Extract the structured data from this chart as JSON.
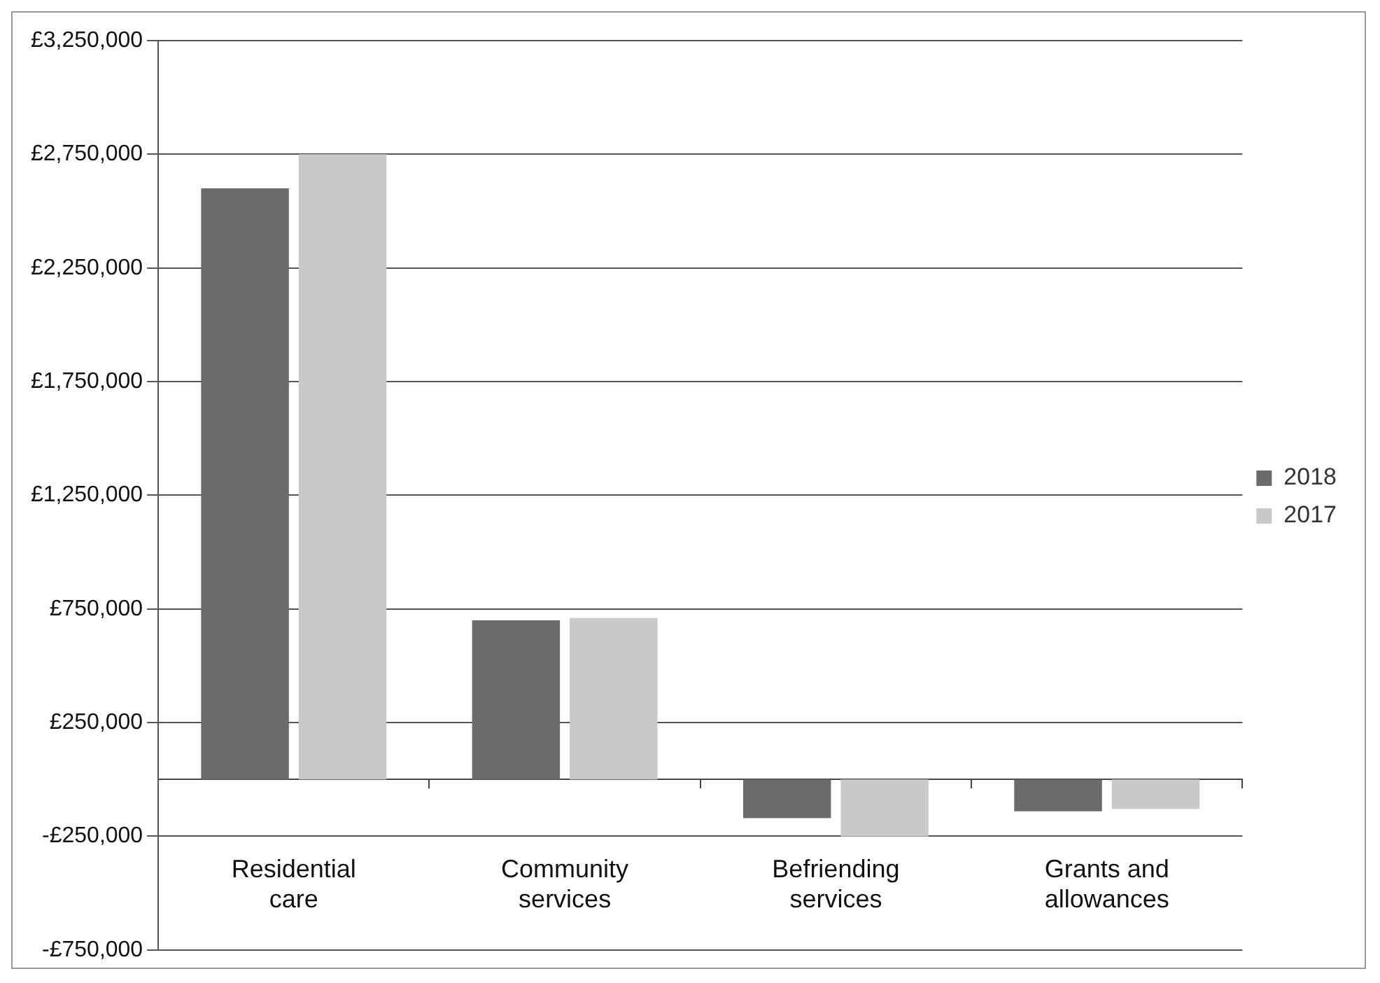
{
  "chart_data": {
    "type": "bar",
    "categories": [
      "Residential care",
      "Community services",
      "Befriending services",
      "Grants and allowances"
    ],
    "series": [
      {
        "name": "2018",
        "color": "#6b6b6b",
        "values": [
          2600000,
          700000,
          -170000,
          -140000
        ]
      },
      {
        "name": "2017",
        "color": "#c9c9c9",
        "values": [
          2750000,
          710000,
          -250000,
          -130000
        ]
      }
    ],
    "ylim": [
      -750000,
      3250000
    ],
    "yticks": [
      {
        "value": -750000,
        "label": "-£750,000"
      },
      {
        "value": -250000,
        "label": "-£250,000"
      },
      {
        "value": 250000,
        "label": "£250,000"
      },
      {
        "value": 750000,
        "label": "£750,000"
      },
      {
        "value": 1250000,
        "label": "£1,250,000"
      },
      {
        "value": 1750000,
        "label": "£1,750,000"
      },
      {
        "value": 2250000,
        "label": "£2,250,000"
      },
      {
        "value": 2750000,
        "label": "£2,750,000"
      },
      {
        "value": 3250000,
        "label": "£3,250,000"
      }
    ],
    "grid": "y",
    "legend": "right"
  }
}
